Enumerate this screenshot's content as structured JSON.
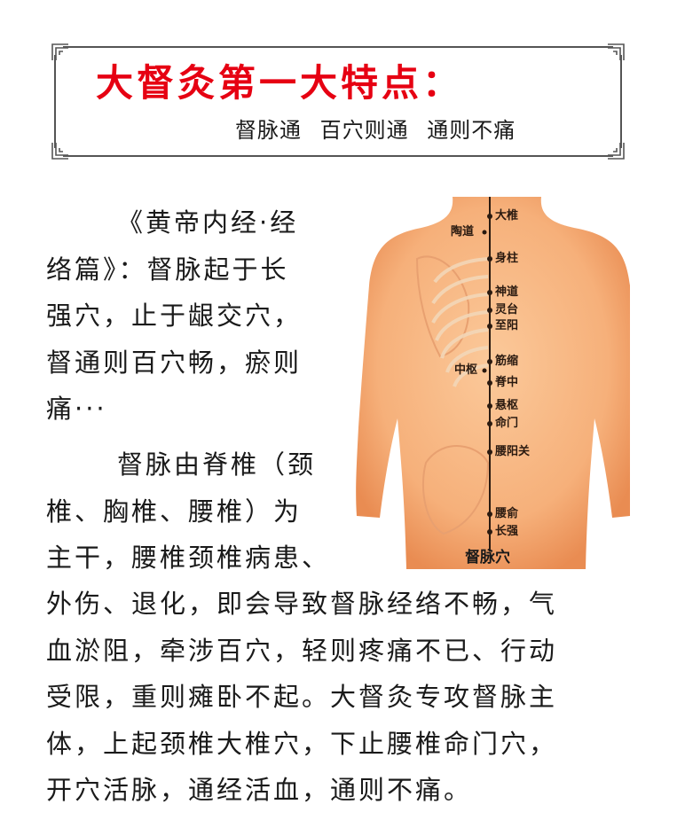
{
  "header": {
    "title": "大督灸第一大特点：",
    "subtitle": [
      "督脉通",
      "百穴则通",
      "通则不痛"
    ]
  },
  "intro": {
    "lines": [
      "《黄帝内经·经",
      "络篇》：督脉起于长",
      "强穴，止于龈交穴，",
      "督通则百穴畅，瘀则",
      "痛···"
    ]
  },
  "second": {
    "lines": [
      "督脉由脊椎（颈",
      "椎、胸椎、腰椎）为",
      "主干，腰椎颈椎病患、"
    ]
  },
  "third": {
    "lines": [
      "外伤、退化，即会导致督脉经络不畅，气",
      "血淤阻，牵涉百穴，轻则疼痛不已、行动",
      "受限，重则瘫卧不起。大督灸专攻督脉主",
      "体，上起颈椎大椎穴，下止腰椎命门穴，",
      "开穴活脉，通经活血，通则不痛。"
    ]
  },
  "figure": {
    "meridian_name": "督脉穴",
    "acupoints_right": [
      "大椎",
      "身柱",
      "神道",
      "灵台",
      "至阳",
      "筋缩",
      "脊中",
      "悬枢",
      "命门",
      "腰阳关",
      "腰俞",
      "长强"
    ],
    "acupoints_left": [
      "陶道",
      "中枢"
    ],
    "colors": {
      "skin": "#f6b784",
      "skin_shadow": "#e88a4e",
      "bone": "#f3d7b8",
      "meridian": "#2a1a10"
    }
  },
  "colors": {
    "title": "#e60012",
    "frame": "#555555",
    "text": "#1a1a1a"
  }
}
